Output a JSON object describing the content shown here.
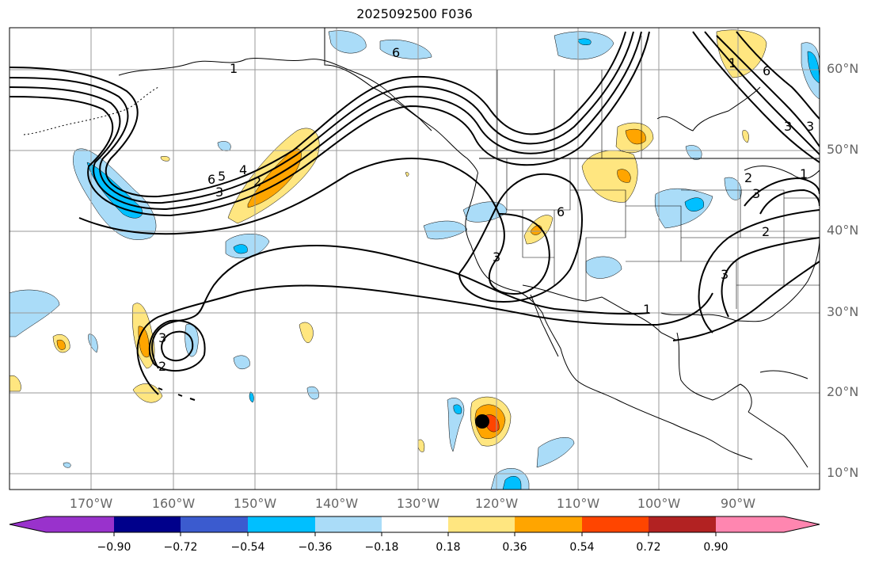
{
  "title": "2025092500 F036",
  "latitude_labels": [
    "60°N",
    "50°N",
    "40°N",
    "30°N",
    "20°N",
    "10°N"
  ],
  "longitude_labels": [
    "170°W",
    "160°W",
    "150°W",
    "140°W",
    "130°W",
    "120°W",
    "110°W",
    "100°W",
    "90°W"
  ],
  "colorbar": {
    "ticks": [
      "−0.90",
      "−0.72",
      "−0.54",
      "−0.36",
      "−0.18",
      "0.18",
      "0.36",
      "0.54",
      "0.72",
      "0.90"
    ],
    "colors": [
      "#9932cc",
      "#00008b",
      "#3b5bcf",
      "#00bfff",
      "#aadcf8",
      "#ffffff",
      "#ffe680",
      "#ffa500",
      "#ff4500",
      "#b22222",
      "#ff86b0"
    ]
  },
  "contour_labels": [
    "6",
    "5",
    "4",
    "3",
    "2",
    "1",
    "6",
    "6",
    "3",
    "3",
    "2",
    "1",
    "3",
    "2",
    "3",
    "6",
    "1",
    "3",
    "2",
    "1",
    "3"
  ],
  "storm_marker": "tropical-cyclone-center"
}
